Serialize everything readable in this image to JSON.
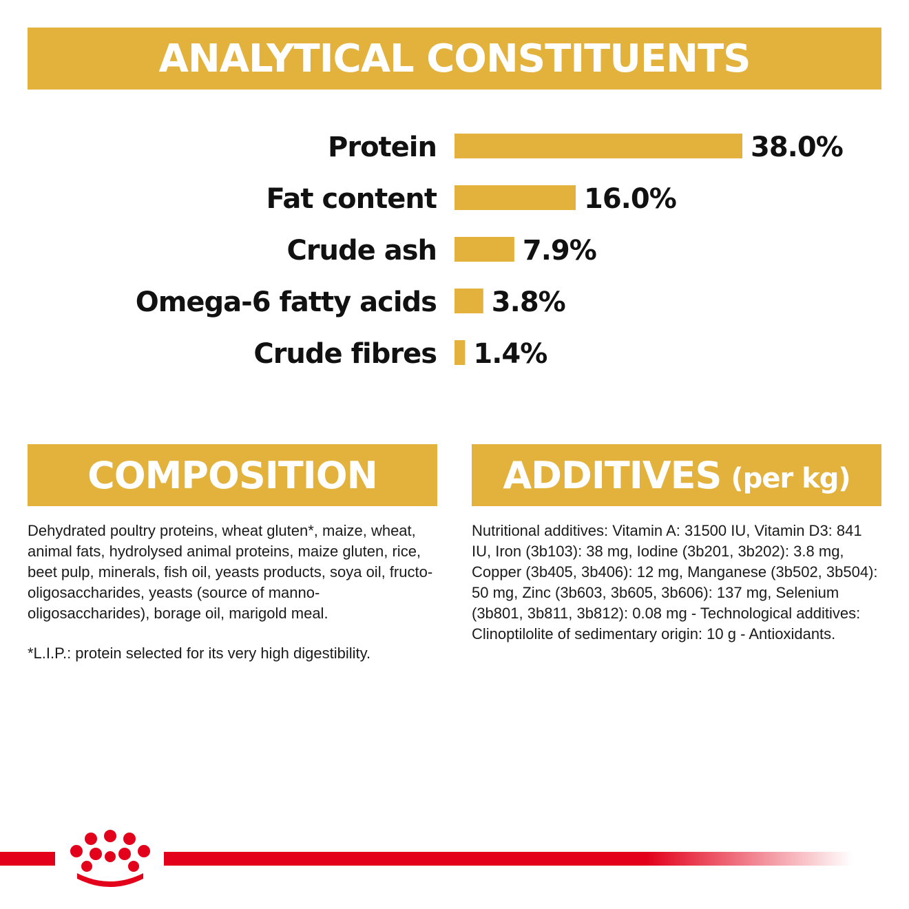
{
  "headers": {
    "analytical": "ANALYTICAL CONSTITUENTS",
    "composition": "COMPOSITION",
    "additives": "ADDITIVES",
    "additives_unit": "(per kg)"
  },
  "chart_data": {
    "type": "bar",
    "orientation": "horizontal",
    "title": "ANALYTICAL CONSTITUENTS",
    "categories": [
      "Protein",
      "Fat content",
      "Crude ash",
      "Omega-6 fatty acids",
      "Crude fibres"
    ],
    "values": [
      38.0,
      16.0,
      7.9,
      3.8,
      1.4
    ],
    "value_labels": [
      "38.0%",
      "16.0%",
      "7.9%",
      "3.8%",
      "1.4%"
    ],
    "unit": "%",
    "grid": false,
    "legend": "none",
    "bar_color": "#E3B23C"
  },
  "composition": {
    "text": "Dehydrated poultry proteins, wheat gluten*, maize, wheat, animal fats, hydrolysed animal proteins, maize gluten, rice, beet pulp, minerals, fish oil, yeasts products, soya oil, fructo-oligosaccharides, yeasts (source of manno-oligosaccharides), borage oil, marigold meal.",
    "note": "*L.I.P.: protein selected for its very high digestibility."
  },
  "additives": {
    "text": "Nutritional additives: Vitamin A: 31500 IU, Vitamin D3: 841 IU, Iron (3b103): 38 mg, Iodine (3b201, 3b202): 3.8 mg, Copper (3b405, 3b406): 12 mg, Manganese (3b502, 3b504): 50 mg, Zinc (3b603, 3b605, 3b606): 137 mg, Selenium (3b801, 3b811, 3b812): 0.08 mg - Technological additives: Clinoptilolite of sedimentary origin: 10 g - Antioxidants."
  },
  "colors": {
    "accent": "#E3B23C",
    "brand_red": "#E2001A",
    "text": "#111111"
  },
  "footer": {
    "logo_icon": "crown-icon"
  }
}
